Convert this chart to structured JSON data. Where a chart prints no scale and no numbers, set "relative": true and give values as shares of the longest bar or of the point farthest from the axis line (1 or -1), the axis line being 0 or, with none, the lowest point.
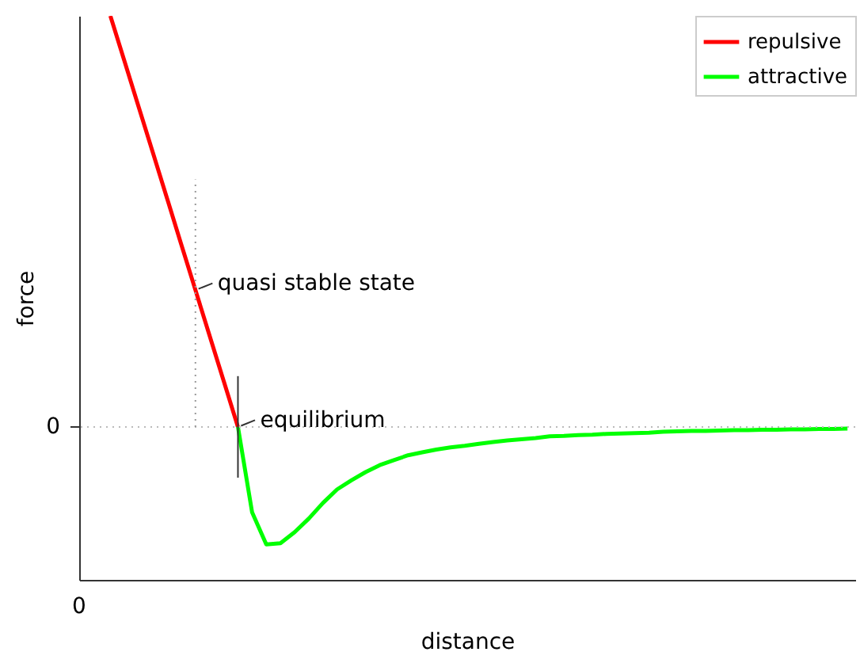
{
  "chart_data": {
    "type": "line",
    "xlabel": "distance",
    "ylabel": "force",
    "relative": true,
    "categories": [
      null,
      null,
      null,
      null,
      null,
      null,
      null,
      null,
      null,
      null,
      null,
      null,
      null,
      null,
      null,
      null,
      null,
      null,
      null,
      null,
      null,
      null,
      null,
      null,
      null,
      null,
      null,
      null,
      null,
      null,
      null,
      null,
      null,
      null,
      null,
      null,
      null,
      null,
      null,
      null,
      null,
      null,
      null,
      null,
      null,
      null,
      null,
      null,
      null,
      null,
      null,
      null,
      null
    ],
    "series": [
      {
        "name": "repulsive",
        "color": "#ff0000",
        "values": [
          1.0,
          0.889,
          0.778,
          0.667,
          0.556,
          0.444,
          0.333,
          0.222,
          0.111,
          0.0,
          null,
          null,
          null,
          null,
          null,
          null,
          null,
          null,
          null,
          null,
          null,
          null,
          null,
          null,
          null,
          null,
          null,
          null,
          null,
          null,
          null,
          null,
          null,
          null,
          null,
          null,
          null,
          null,
          null,
          null,
          null,
          null,
          null,
          null,
          null,
          null,
          null,
          null,
          null,
          null,
          null,
          null,
          null
        ]
      },
      {
        "name": "attractive",
        "color": "#00ff00",
        "values": [
          null,
          null,
          null,
          null,
          null,
          null,
          null,
          null,
          null,
          0.0,
          -0.208,
          -0.286,
          -0.283,
          -0.256,
          -0.223,
          -0.185,
          -0.152,
          -0.13,
          -0.11,
          -0.093,
          -0.081,
          -0.069,
          -0.062,
          -0.055,
          -0.05,
          -0.046,
          -0.041,
          -0.037,
          -0.033,
          -0.03,
          -0.027,
          -0.023,
          -0.022,
          -0.02,
          -0.019,
          -0.017,
          -0.016,
          -0.015,
          -0.014,
          -0.012,
          -0.011,
          -0.01,
          -0.01,
          -0.009,
          -0.008,
          -0.008,
          -0.007,
          -0.007,
          -0.006,
          -0.006,
          -0.005,
          -0.005,
          -0.004
        ]
      }
    ],
    "ref_lines": [
      {
        "axis": "y",
        "value": 0,
        "line_style": "dotted",
        "color": "#bbbbbb"
      }
    ],
    "annotations": [
      "quasi stable state",
      "equilibrium",
      "0",
      "0"
    ],
    "legend": "top right",
    "line_style": "solid",
    "marker": "none"
  }
}
